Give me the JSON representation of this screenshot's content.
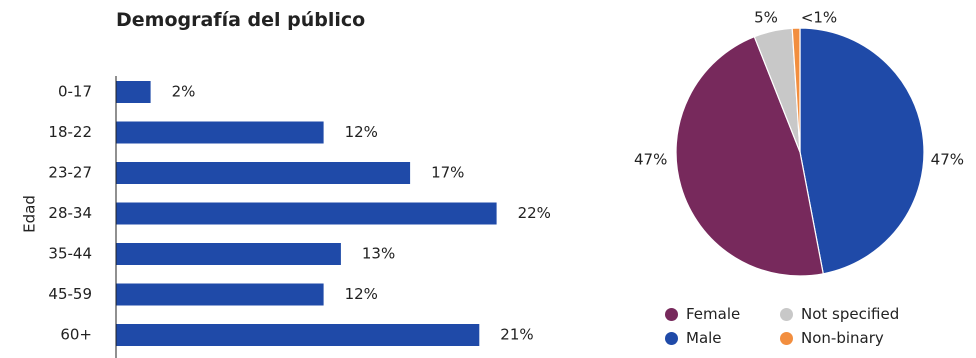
{
  "chart_data": [
    {
      "type": "bar",
      "orientation": "horizontal",
      "title": "Demografía del público",
      "ylabel": "Edad",
      "categories": [
        "0-17",
        "18-22",
        "23-27",
        "28-34",
        "35-44",
        "45-59",
        "60+"
      ],
      "values": [
        2,
        12,
        17,
        22,
        13,
        12,
        21
      ],
      "data_labels": [
        "2%",
        "12%",
        "17%",
        "22%",
        "13%",
        "12%",
        "21%"
      ],
      "unit": "%",
      "xlim": [
        0,
        22
      ],
      "grid": false,
      "color": "#1f4aa8"
    },
    {
      "type": "pie",
      "slices": [
        {
          "name": "Male",
          "value": 47,
          "label": "47%",
          "color": "#1f4aa8"
        },
        {
          "name": "Female",
          "value": 47,
          "label": "47%",
          "color": "#77295c"
        },
        {
          "name": "Not specified",
          "value": 5,
          "label": "5%",
          "color": "#c8c8c8"
        },
        {
          "name": "Non-binary",
          "value": 1,
          "label": "<1%",
          "color": "#f28e3f"
        }
      ],
      "legend": {
        "position": "bottom",
        "items": [
          {
            "name": "Female",
            "color": "#77295c"
          },
          {
            "name": "Not specified",
            "color": "#c8c8c8"
          },
          {
            "name": "Male",
            "color": "#1f4aa8"
          },
          {
            "name": "Non-binary",
            "color": "#f28e3f"
          }
        ]
      }
    }
  ]
}
